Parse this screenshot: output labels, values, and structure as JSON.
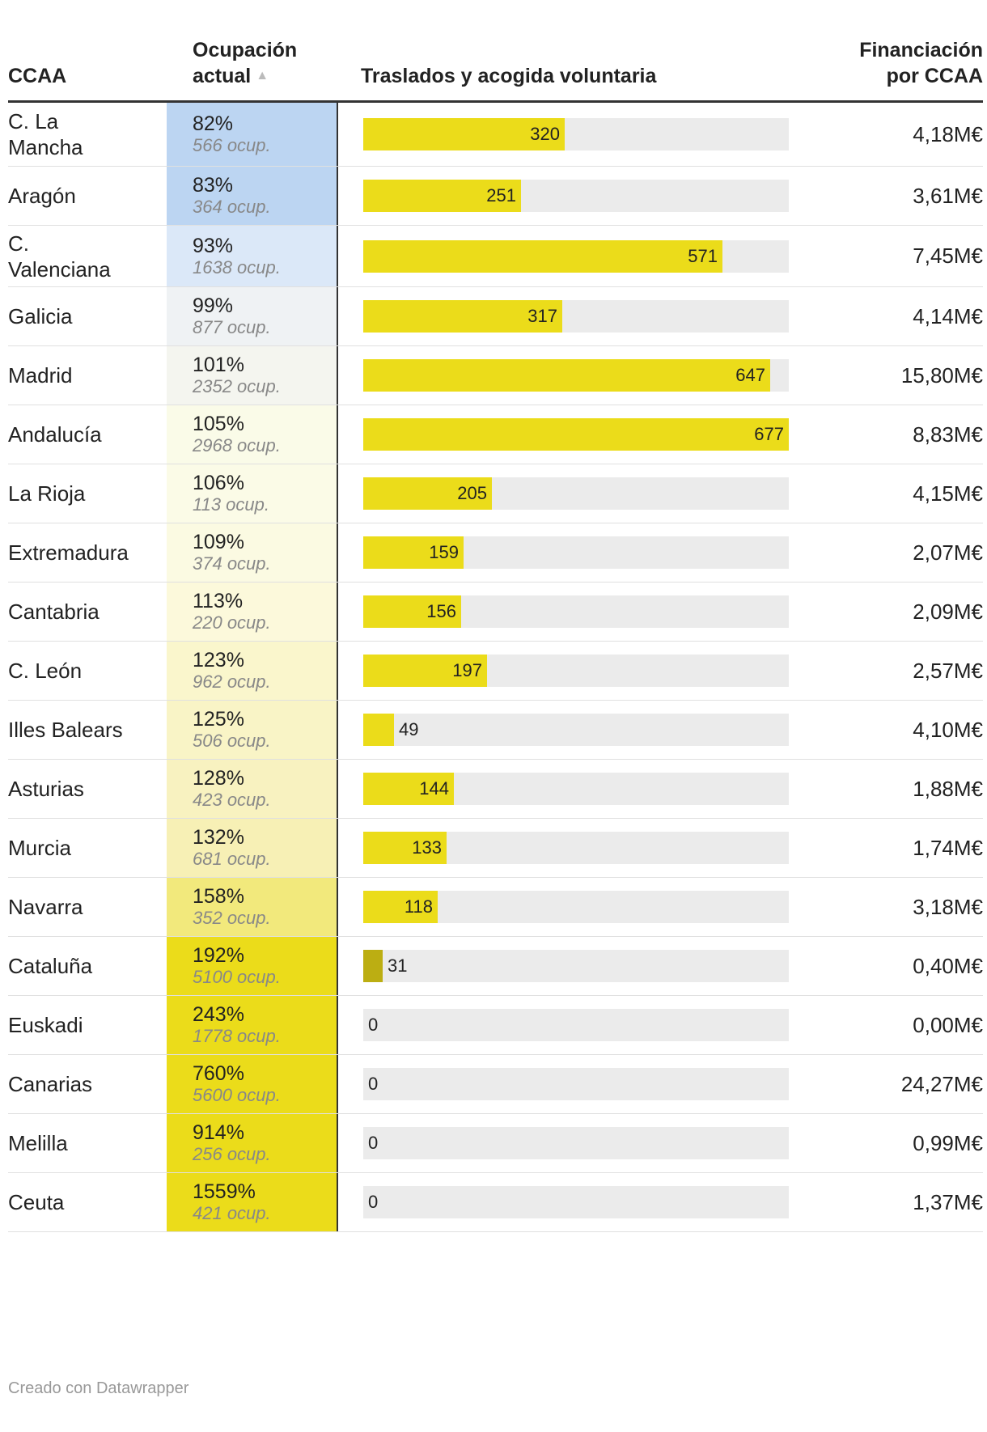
{
  "chart_data": {
    "type": "table",
    "columns": {
      "ccaa": "CCAA",
      "occupancy_line1": "Ocupación",
      "occupancy_line2": "actual",
      "sort_icon": "triangle-up-icon",
      "transfers": "Traslados y acogida voluntaria",
      "funding_line1": "Financiación",
      "funding_line2": "por CCAA"
    },
    "transfers_max": 677,
    "colors": {
      "bar": "#ebdc1a",
      "bar_dark": "#bcae12",
      "track": "#ebebeb"
    },
    "rows": [
      {
        "ccaa": "C. La Mancha",
        "occupancy_pct": "82%",
        "occupancy": "566 ocup.",
        "heat": "#bcd5f2",
        "transfers": 320,
        "funding": "4,18M€"
      },
      {
        "ccaa": "Aragón",
        "occupancy_pct": "83%",
        "occupancy": "364 ocup.",
        "heat": "#bcd5f2",
        "transfers": 251,
        "funding": "3,61M€"
      },
      {
        "ccaa": "C. Valenciana",
        "occupancy_pct": "93%",
        "occupancy": "1638 ocup.",
        "heat": "#dbe8f8",
        "transfers": 571,
        "funding": "7,45M€"
      },
      {
        "ccaa": "Galicia",
        "occupancy_pct": "99%",
        "occupancy": "877 ocup.",
        "heat": "#eff2f4",
        "transfers": 317,
        "funding": "4,14M€"
      },
      {
        "ccaa": "Madrid",
        "occupancy_pct": "101%",
        "occupancy": "2352 ocup.",
        "heat": "#f4f5ef",
        "transfers": 647,
        "funding": "15,80M€"
      },
      {
        "ccaa": "Andalucía",
        "occupancy_pct": "105%",
        "occupancy": "2968 ocup.",
        "heat": "#fafbe8",
        "transfers": 677,
        "funding": "8,83M€"
      },
      {
        "ccaa": "La Rioja",
        "occupancy_pct": "106%",
        "occupancy": "113 ocup.",
        "heat": "#fbfbe7",
        "transfers": 205,
        "funding": "4,15M€"
      },
      {
        "ccaa": "Extremadura",
        "occupancy_pct": "109%",
        "occupancy": "374 ocup.",
        "heat": "#fbfae2",
        "transfers": 159,
        "funding": "2,07M€"
      },
      {
        "ccaa": "Cantabria",
        "occupancy_pct": "113%",
        "occupancy": "220 ocup.",
        "heat": "#fcf9db",
        "transfers": 156,
        "funding": "2,09M€"
      },
      {
        "ccaa": "C. León",
        "occupancy_pct": "123%",
        "occupancy": "962 ocup.",
        "heat": "#faf6cc",
        "transfers": 197,
        "funding": "2,57M€"
      },
      {
        "ccaa": "Illes Balears",
        "occupancy_pct": "125%",
        "occupancy": "506 ocup.",
        "heat": "#f9f4c6",
        "transfers": 49,
        "funding": "4,10M€"
      },
      {
        "ccaa": "Asturias",
        "occupancy_pct": "128%",
        "occupancy": "423 ocup.",
        "heat": "#f8f2c0",
        "transfers": 144,
        "funding": "1,88M€"
      },
      {
        "ccaa": "Murcia",
        "occupancy_pct": "132%",
        "occupancy": "681 ocup.",
        "heat": "#f7f0b5",
        "transfers": 133,
        "funding": "1,74M€"
      },
      {
        "ccaa": "Navarra",
        "occupancy_pct": "158%",
        "occupancy": "352 ocup.",
        "heat": "#f2e97c",
        "transfers": 118,
        "funding": "3,18M€"
      },
      {
        "ccaa": "Cataluña",
        "occupancy_pct": "192%",
        "occupancy": "5100 ocup.",
        "heat": "#ebdc1a",
        "transfers": 31,
        "funding": "0,40M€"
      },
      {
        "ccaa": "Euskadi",
        "occupancy_pct": "243%",
        "occupancy": "1778 ocup.",
        "heat": "#ebdc1a",
        "transfers": 0,
        "funding": "0,00M€"
      },
      {
        "ccaa": "Canarias",
        "occupancy_pct": "760%",
        "occupancy": "5600 ocup.",
        "heat": "#ebdc1a",
        "transfers": 0,
        "funding": "24,27M€"
      },
      {
        "ccaa": "Melilla",
        "occupancy_pct": "914%",
        "occupancy": "256 ocup.",
        "heat": "#ebdc1a",
        "transfers": 0,
        "funding": "0,99M€"
      },
      {
        "ccaa": "Ceuta",
        "occupancy_pct": "1559%",
        "occupancy": "421 ocup.",
        "heat": "#ebdc1a",
        "transfers": 0,
        "funding": "1,37M€"
      }
    ]
  },
  "footer": {
    "credit": "Creado con Datawrapper"
  }
}
